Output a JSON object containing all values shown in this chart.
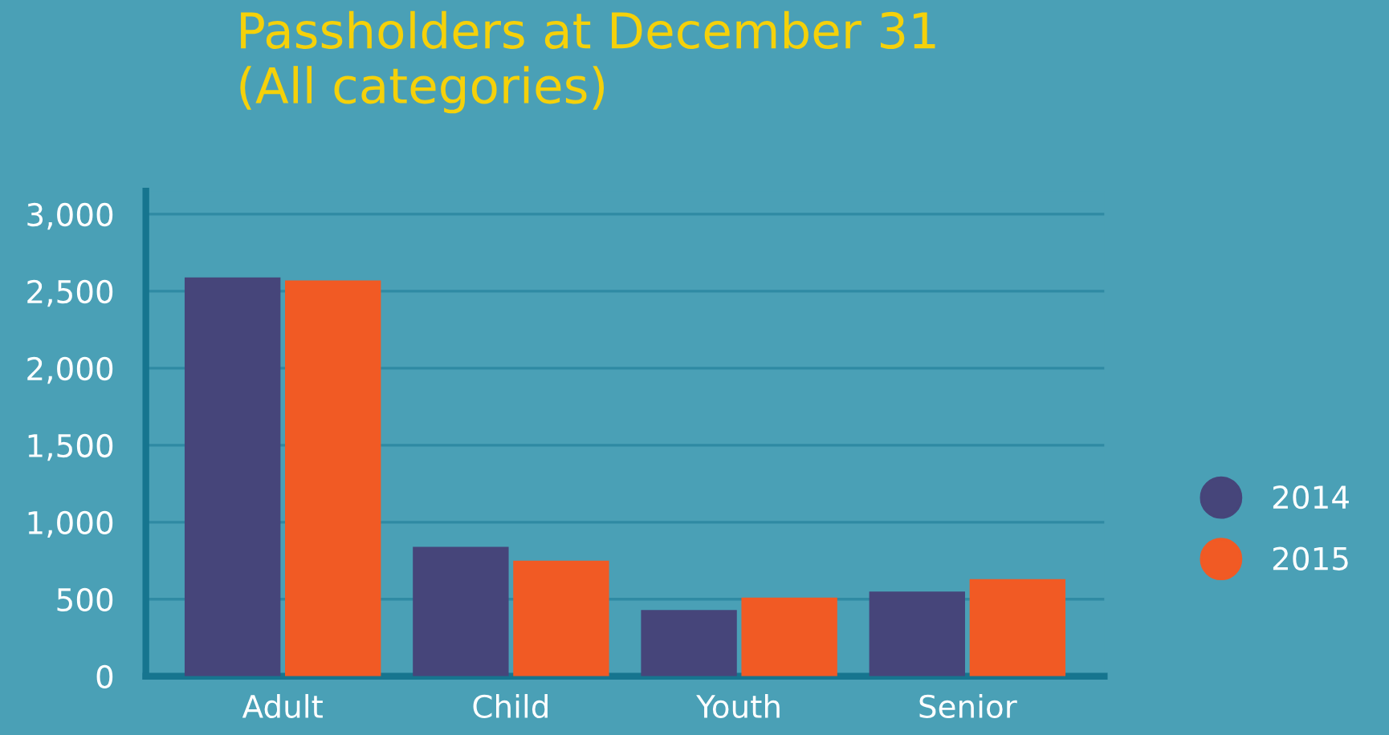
{
  "chart_data": {
    "type": "bar",
    "title": "Passholders at December 31\n(All categories)",
    "categories": [
      "Adult",
      "Child",
      "Youth",
      "Senior"
    ],
    "series": [
      {
        "name": "2014",
        "color": "#46457a",
        "values": [
          2590,
          840,
          430,
          550
        ]
      },
      {
        "name": "2015",
        "color": "#f15a24",
        "values": [
          2570,
          750,
          510,
          630
        ]
      }
    ],
    "ylim": [
      0,
      3150
    ],
    "yticks": [
      0,
      {
        "value": 500,
        "label": "500"
      },
      {
        "value": 1000,
        "label": "1,000"
      },
      {
        "value": 1500,
        "label": "1,500"
      },
      {
        "value": 2000,
        "label": "2,000"
      },
      {
        "value": 2500,
        "label": "2,500"
      },
      {
        "value": 3000,
        "label": "3,000"
      }
    ],
    "grid": "y",
    "legend": "right"
  }
}
